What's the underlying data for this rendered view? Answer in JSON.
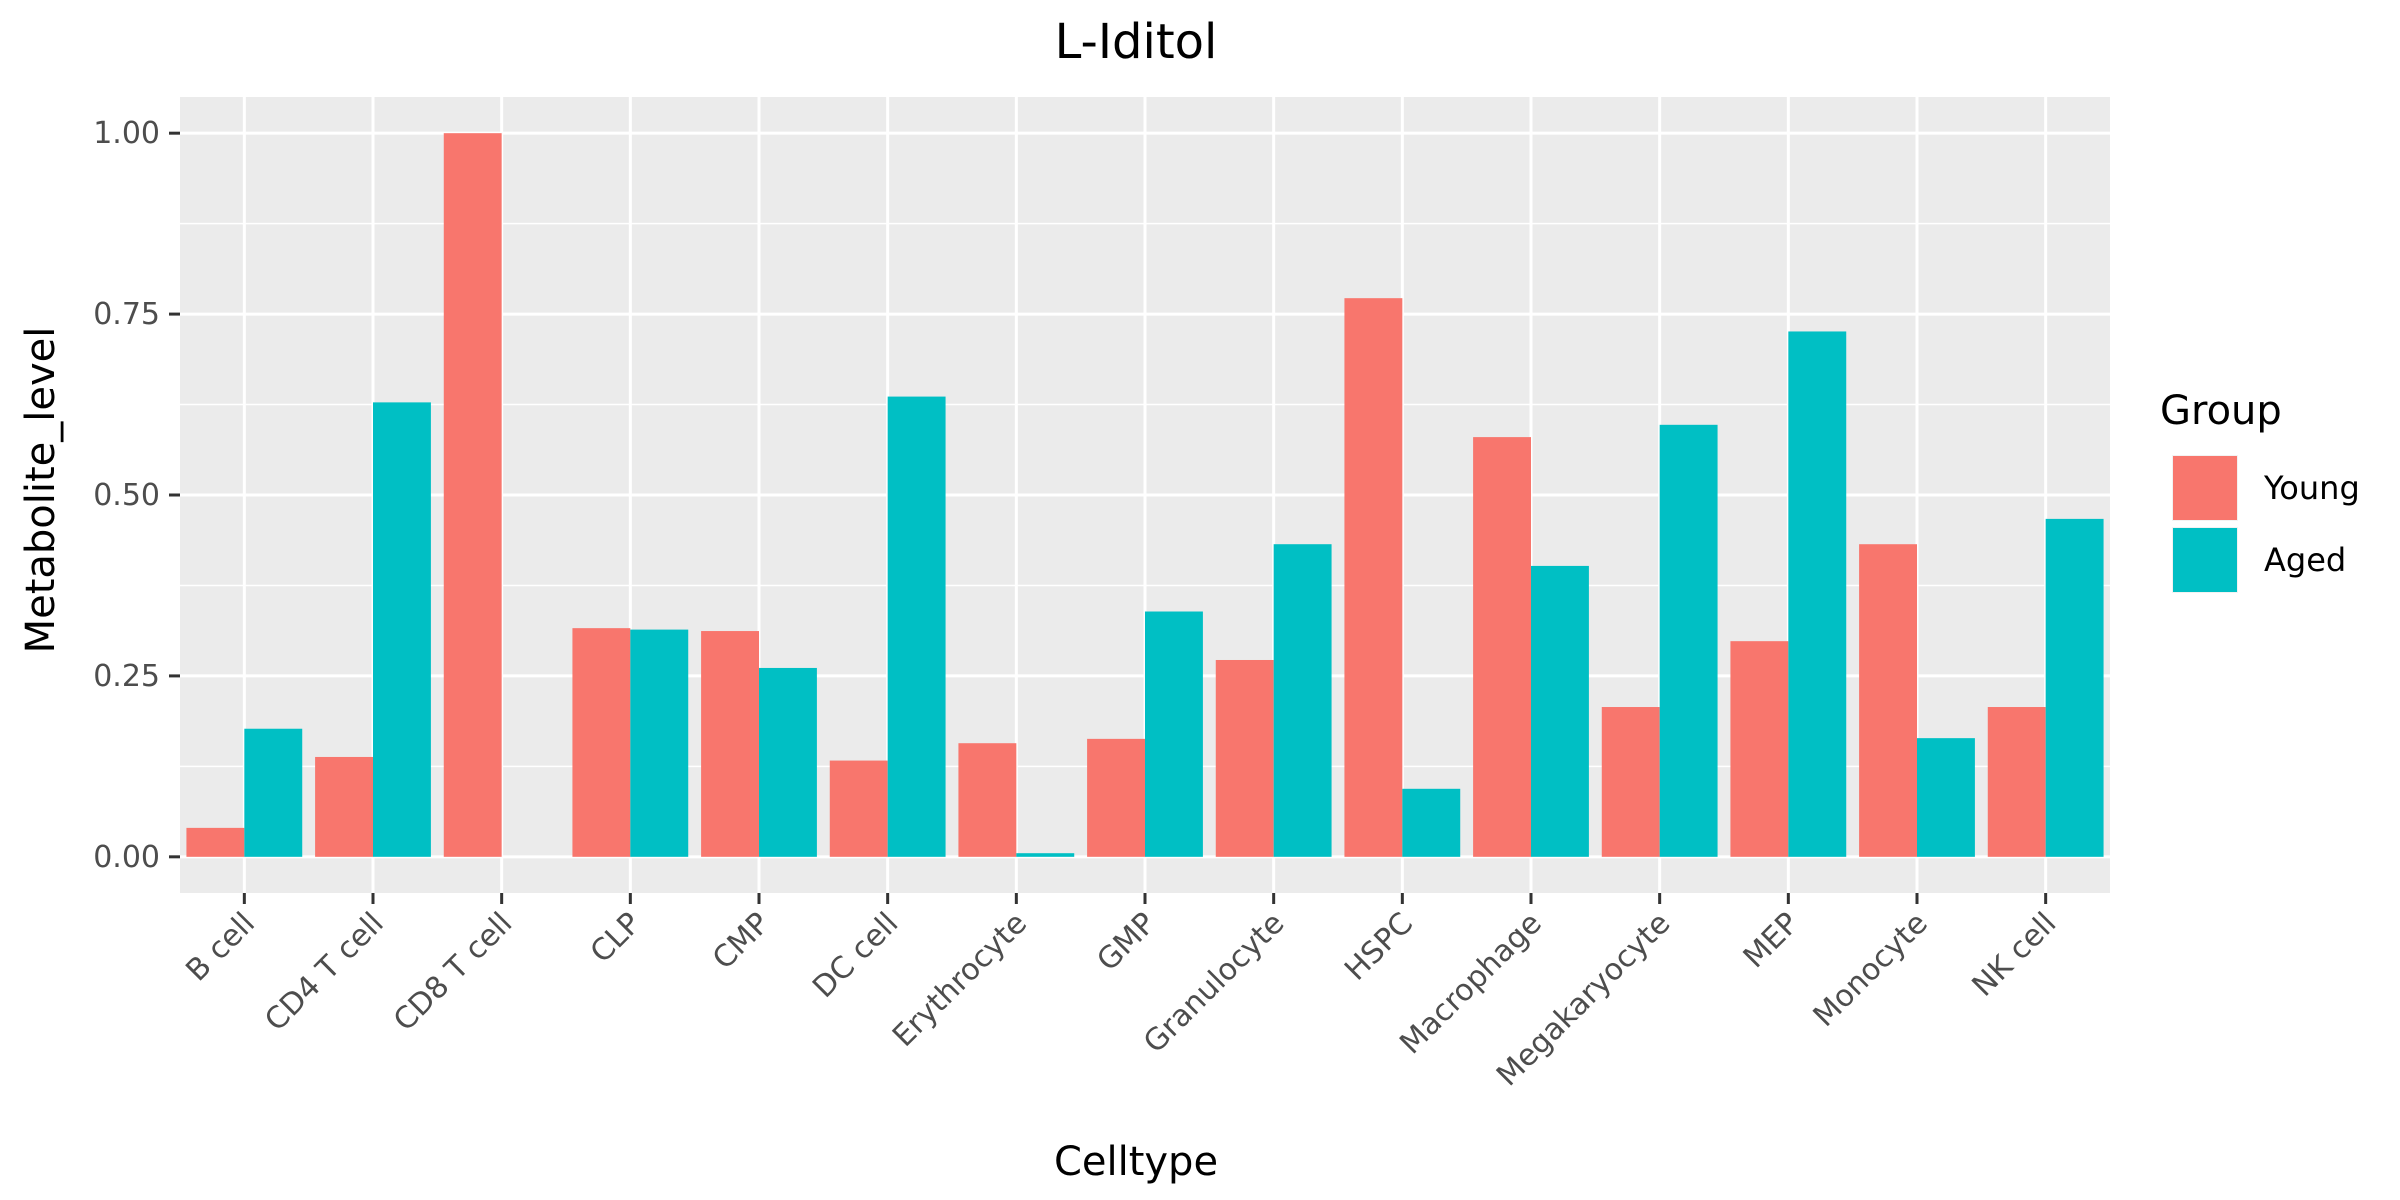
{
  "chart_data": {
    "type": "bar",
    "title": "L-Iditol",
    "xlabel": "Celltype",
    "ylabel": "Metabolite_level",
    "ylim": [
      -0.05,
      1.05
    ],
    "yticks": [
      0.0,
      0.25,
      0.5,
      0.75,
      1.0
    ],
    "ytick_labels": [
      "0.00",
      "0.25",
      "0.50",
      "0.75",
      "1.00"
    ],
    "grid": true,
    "legend_position": "right",
    "legend_title": "Group",
    "categories": [
      "B cell",
      "CD4 T cell",
      "CD8 T cell",
      "CLP",
      "CMP",
      "DC cell",
      "Erythrocyte",
      "GMP",
      "Granulocyte",
      "HSPC",
      "Macrophage",
      "Megakaryocyte",
      "MEP",
      "Monocyte",
      "NK cell"
    ],
    "series": [
      {
        "name": "Young",
        "color": "#F8766D",
        "values": [
          0.04,
          0.138,
          1.0,
          0.316,
          0.312,
          0.133,
          0.157,
          0.163,
          0.272,
          0.772,
          0.58,
          0.207,
          0.298,
          0.432,
          0.207
        ]
      },
      {
        "name": "Aged",
        "color": "#00BFC4",
        "values": [
          0.177,
          0.628,
          0.0,
          0.314,
          0.261,
          0.636,
          0.005,
          0.339,
          0.432,
          0.094,
          0.402,
          0.597,
          0.726,
          0.164,
          0.467
        ]
      }
    ]
  }
}
